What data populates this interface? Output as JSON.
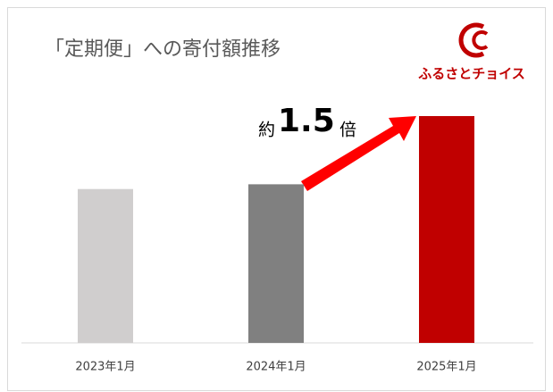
{
  "chart_data": {
    "type": "bar",
    "title": "「定期便」への寄付額推移",
    "categories": [
      "2023年1月",
      "2024年1月",
      "2025年1月"
    ],
    "values": [
      0.97,
      1,
      1.43
    ],
    "colors": [
      "#d0cece",
      "#808080",
      "#c00000"
    ],
    "annotation": {
      "prefix": "約",
      "number": "1.5",
      "suffix": "倍"
    },
    "logo": "ふるさとチョイス"
  }
}
